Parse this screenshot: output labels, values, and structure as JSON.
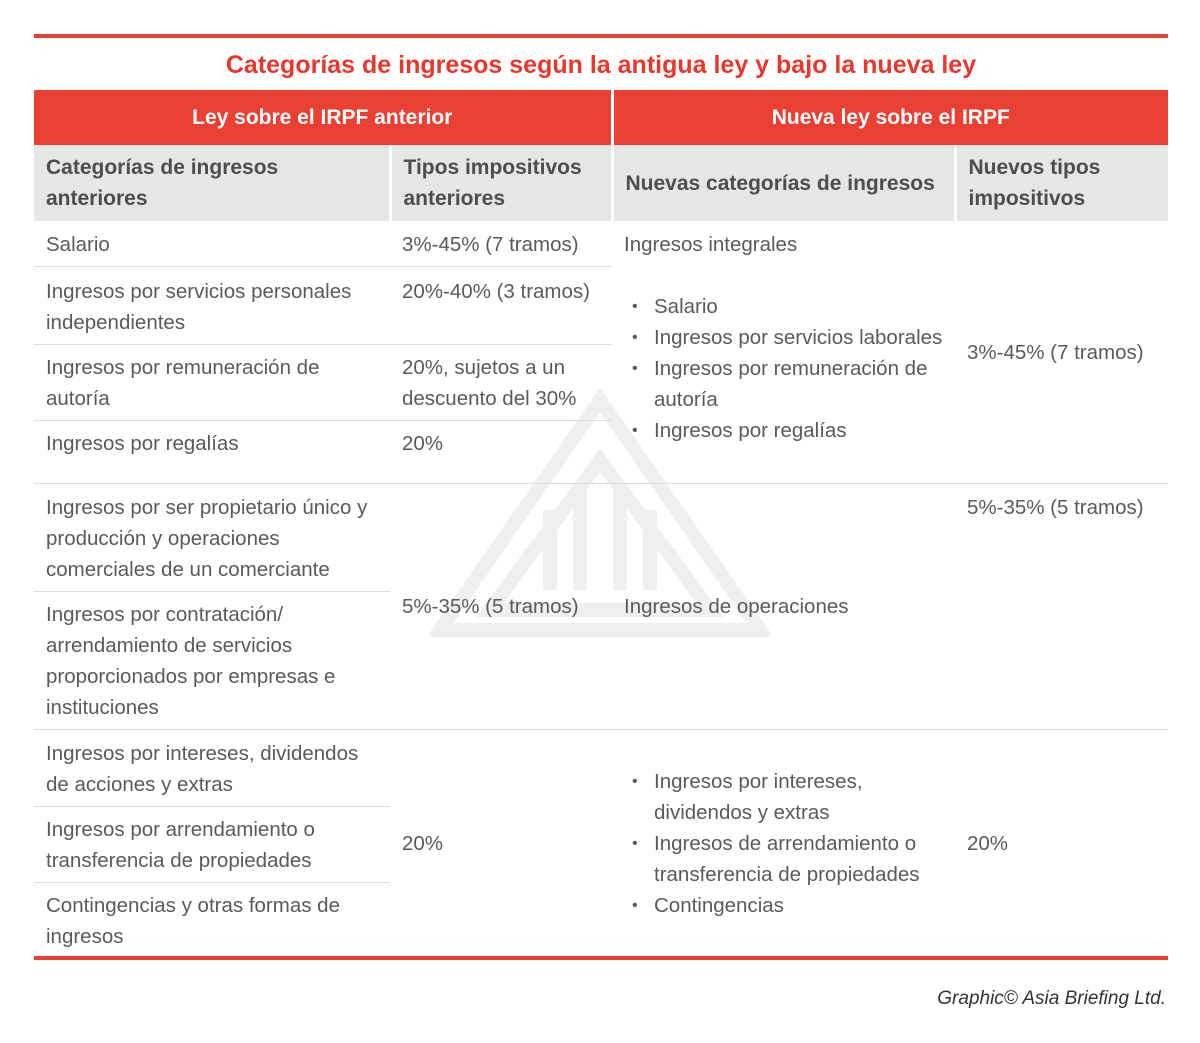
{
  "title": "Categorías de ingresos según la antigua ley y bajo la nueva ley",
  "groups": {
    "old": "Ley sobre el IRPF anterior",
    "new": "Nueva ley sobre el IRPF"
  },
  "headers": {
    "old_categories": "Categorías de ingresos anteriores",
    "old_rates": "Tipos impositivos anteriores",
    "new_categories": "Nuevas categorías de ingresos",
    "new_rates": "Nuevos tipos impositivos"
  },
  "section1": {
    "rows": [
      {
        "category": "Salario",
        "rate": "3%-45% (7 tramos)"
      },
      {
        "category": "Ingresos por servicios personales independientes",
        "rate": "20%-40% (3 tramos)"
      },
      {
        "category": "Ingresos por remuneración de autoría",
        "rate": "20%, sujetos a un descuento del 30%"
      },
      {
        "category": "Ingresos por regalías",
        "rate": "20%"
      }
    ],
    "new_category": "Ingresos integrales",
    "new_bullets": [
      "Salario",
      "Ingresos por servicios laborales",
      "Ingresos por remuneración de autoría",
      "Ingresos por regalías"
    ],
    "new_rate": "3%-45% (7 tramos)"
  },
  "section2": {
    "rows": [
      {
        "category": "Ingresos por ser propietario único y producción y operaciones comerciales de un comerciante"
      },
      {
        "category": "Ingresos por contratación/ arrendamiento de servicios proporcionados por empresas e instituciones"
      }
    ],
    "rate": "5%-35% (5 tramos)",
    "new_category": "Ingresos de operaciones",
    "new_rate": "5%-35% (5 tramos)"
  },
  "section3": {
    "rows": [
      {
        "category": "Ingresos por intereses, dividendos de acciones y extras"
      },
      {
        "category": "Ingresos por arrendamiento o transferencia de propiedades"
      },
      {
        "category": "Contingencias y otras formas de ingresos"
      }
    ],
    "rate": "20%",
    "new_bullets": [
      "Ingresos por intereses, dividendos y extras",
      "Ingresos de arrendamiento o transferencia de propiedades",
      "Contingencias"
    ],
    "new_rate": "20%"
  },
  "credit": "Graphic© Asia Briefing Ltd."
}
